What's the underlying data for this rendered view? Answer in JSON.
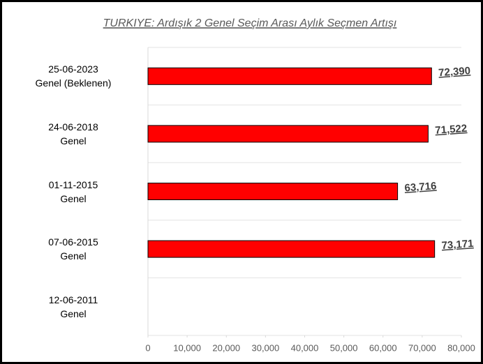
{
  "chart_data": {
    "type": "barh",
    "title": "TURKIYE: Ardışık 2 Genel Seçim Arası Aylık Seçmen Artışı",
    "categories": [
      "25-06-2023\nGenel (Beklenen)",
      "24-06-2018\nGenel",
      "01-11-2015\nGenel",
      "07-06-2015\nGenel",
      "12-06-2011\nGenel"
    ],
    "values": [
      72390,
      71522,
      63716,
      73171,
      null
    ],
    "value_labels": [
      "72,390",
      "71,522",
      "63,716",
      "73,171",
      null
    ],
    "color": "#ff0000",
    "xlim": [
      0,
      80000
    ],
    "xticks": [
      0,
      {
        "value": 10000,
        "label": "10,000"
      },
      {
        "value": 20000,
        "label": "20,000"
      },
      {
        "value": 30000,
        "label": "30,000"
      },
      {
        "value": 40000,
        "label": "40,000"
      },
      {
        "value": 50000,
        "label": "50,000"
      },
      {
        "value": 60000,
        "label": "60,000"
      },
      {
        "value": 70000,
        "label": "70,000"
      },
      {
        "value": 80000,
        "label": "80,000"
      }
    ]
  }
}
